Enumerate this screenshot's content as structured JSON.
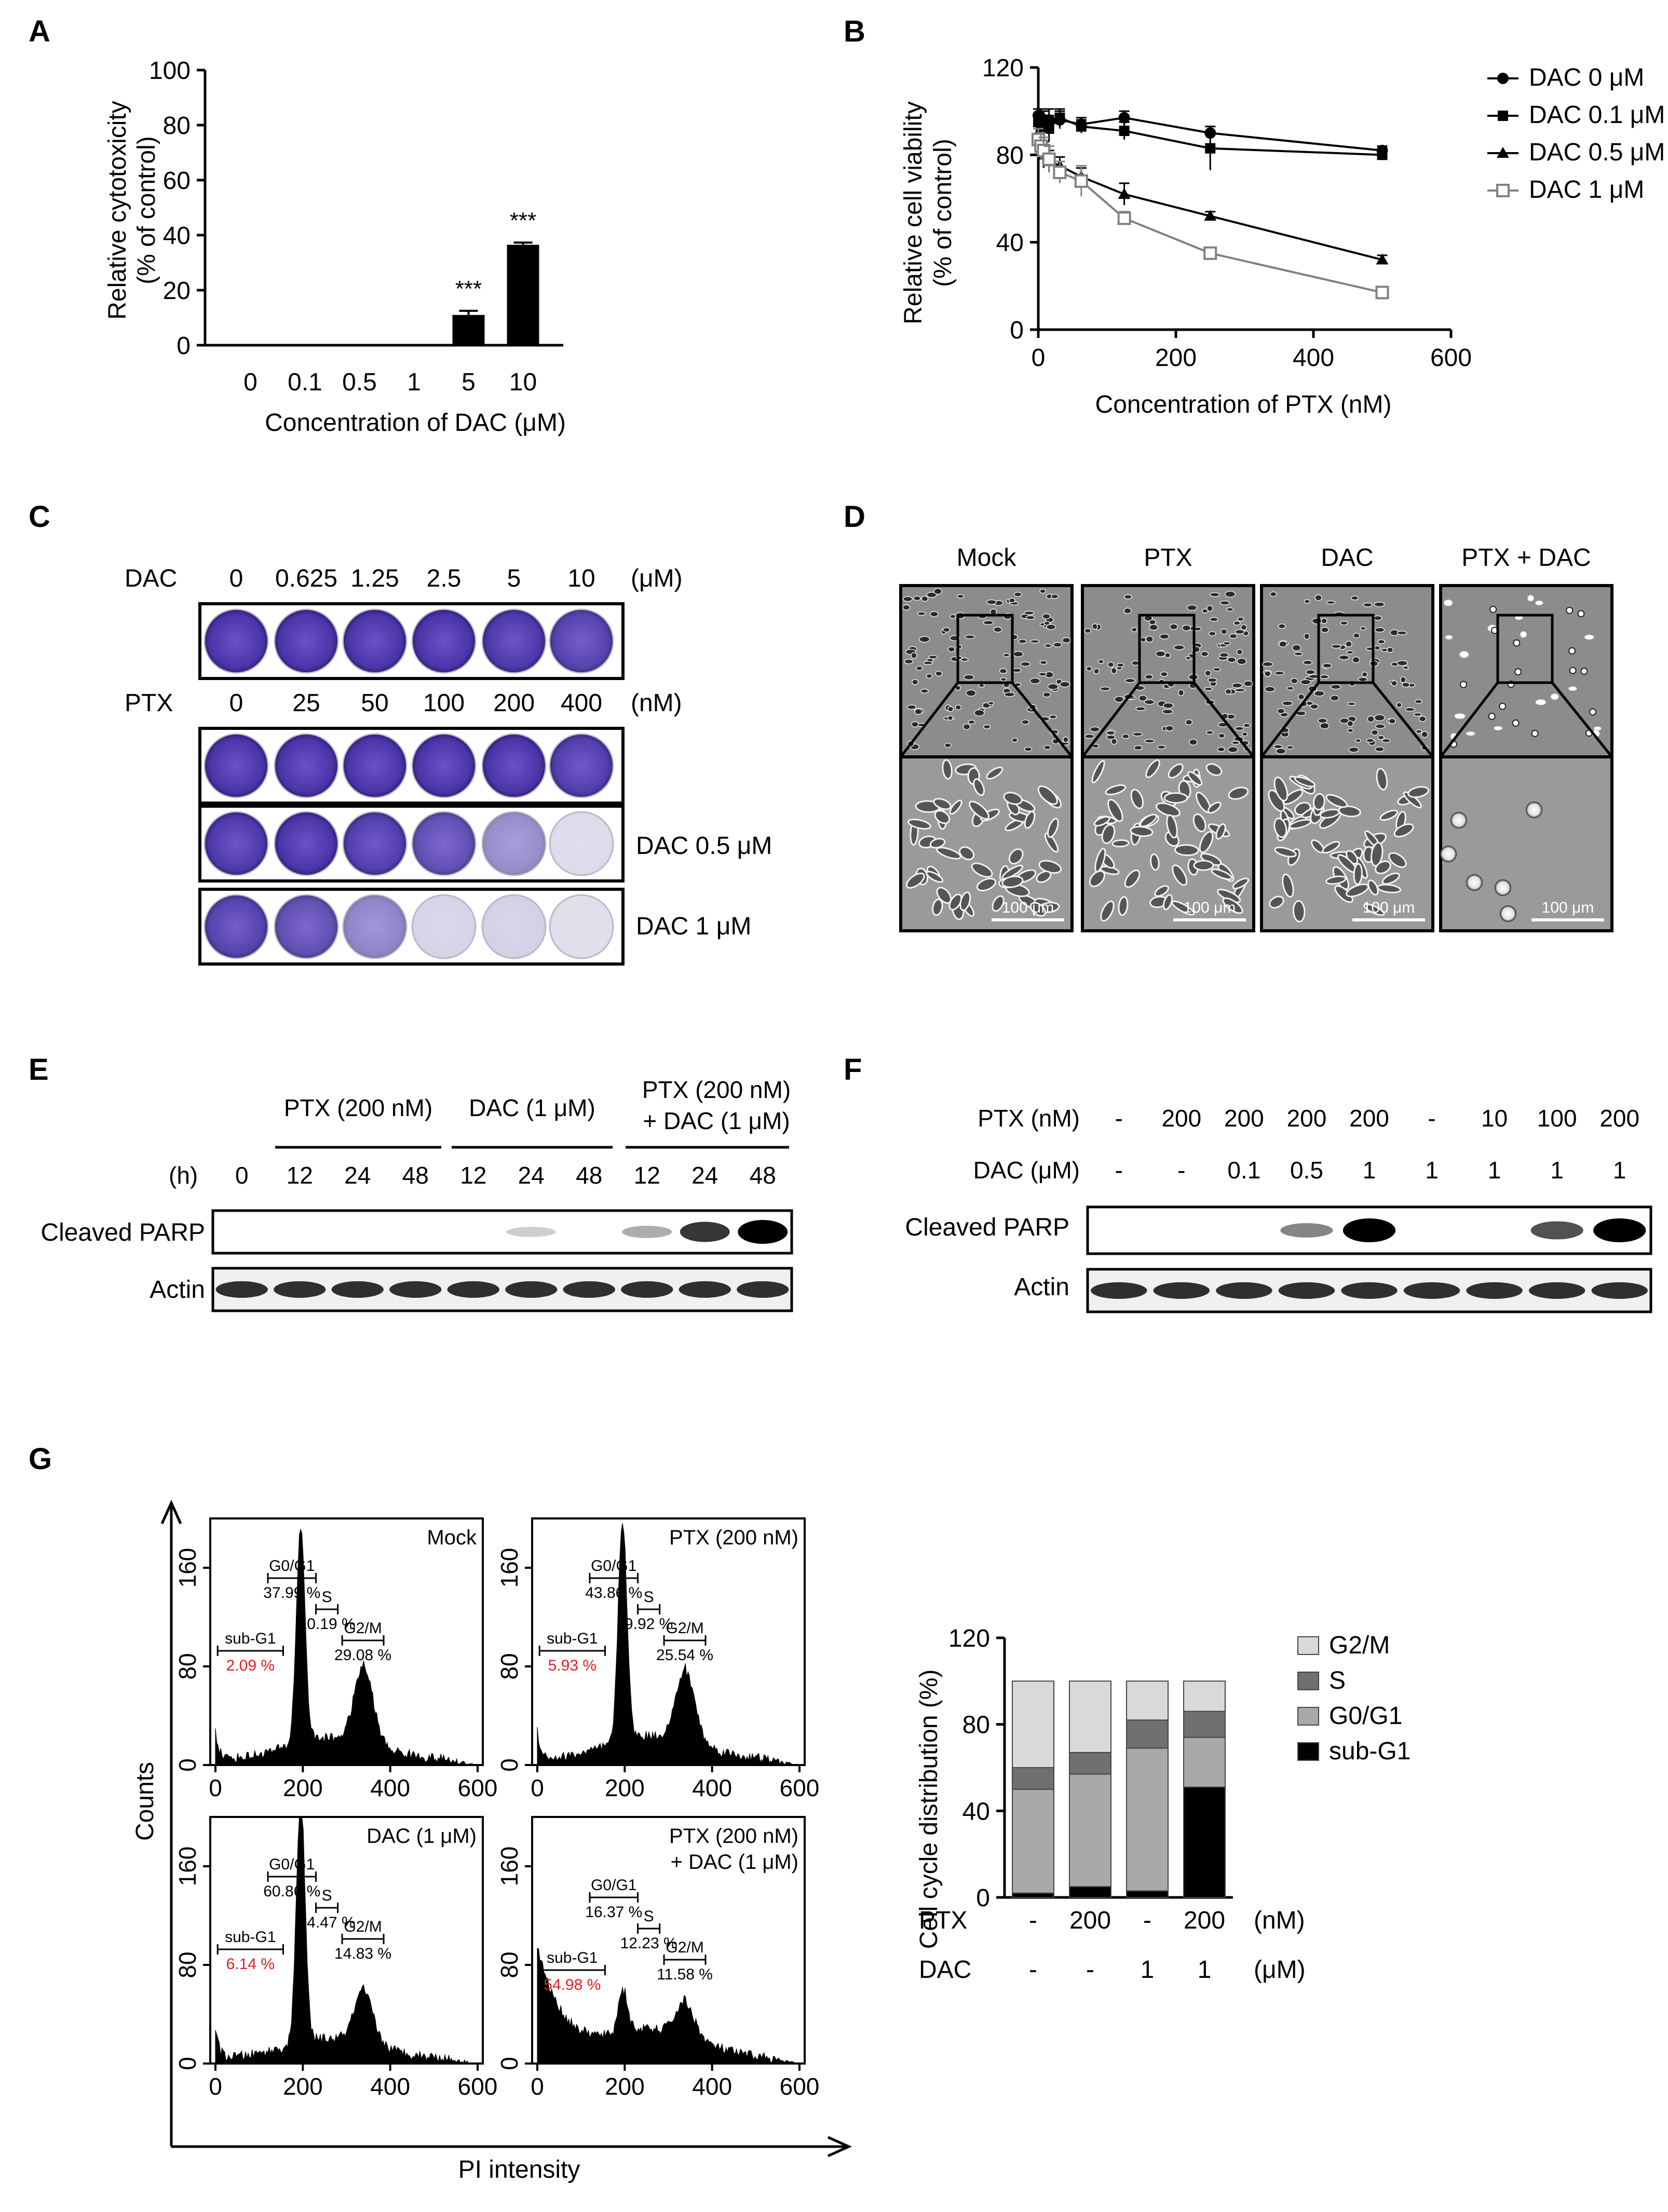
{
  "panels": {
    "A": "A",
    "B": "B",
    "C": "C",
    "D": "D",
    "E": "E",
    "F": "F",
    "G": "G"
  },
  "chart_data": [
    {
      "panel": "A",
      "type": "bar",
      "categories": [
        "0",
        "0.1",
        "0.5",
        "1",
        "5",
        "10"
      ],
      "values": [
        0,
        0,
        0,
        0,
        11,
        36.5
      ],
      "errors": [
        0,
        0,
        0,
        0,
        1.5,
        0.8
      ],
      "annotations": [
        "",
        "",
        "",
        "",
        "***",
        "***"
      ],
      "xlabel": "Concentration of DAC (μM)",
      "ylabel_line1": "Relative cytotoxicity",
      "ylabel_line2": "(% of control)",
      "ylim": [
        0,
        100
      ],
      "yticks": [
        "0",
        "20",
        "40",
        "60",
        "80",
        "100"
      ],
      "color": "#000000"
    },
    {
      "panel": "B",
      "type": "line",
      "xlabel": "Concentration of PTX (nM)",
      "ylabel_line1": "Relative cell viability",
      "ylabel_line2": "(% of control)",
      "xlim": [
        0,
        600
      ],
      "ylim": [
        0,
        120
      ],
      "xticks": [
        "0",
        "200",
        "400",
        "600"
      ],
      "yticks": [
        "0",
        "40",
        "80",
        "120"
      ],
      "x": [
        0,
        3.9,
        7.8,
        15.6,
        31.25,
        62.5,
        125,
        250,
        500
      ],
      "series": [
        {
          "name": "DAC 0 μM",
          "marker": "circle",
          "values": [
            98,
            97,
            96,
            96,
            96,
            94,
            97,
            90,
            82
          ],
          "errors": [
            3,
            4,
            4,
            5,
            4,
            3,
            3,
            3,
            2
          ]
        },
        {
          "name": "DAC 0.1 μM",
          "marker": "square",
          "values": [
            95,
            93,
            94,
            92,
            97,
            93,
            91,
            83,
            80
          ],
          "errors": [
            3,
            4,
            4,
            6,
            4,
            3,
            4,
            10,
            2
          ]
        },
        {
          "name": "DAC 0.5 μM",
          "marker": "triangle",
          "values": [
            90,
            86,
            80,
            77,
            75,
            70,
            62,
            52,
            32
          ],
          "errors": [
            4,
            5,
            6,
            5,
            4,
            4,
            5,
            2,
            2
          ]
        },
        {
          "name": "DAC 1 μM",
          "marker": "open-square",
          "values": [
            87,
            84,
            82,
            78,
            72,
            68,
            51,
            35,
            17
          ],
          "errors": [
            5,
            6,
            6,
            6,
            5,
            7,
            3,
            2,
            2
          ]
        }
      ]
    },
    {
      "panel": "G-histogram",
      "type": "area",
      "xlabel": "PI intensity",
      "ylabel": "Counts",
      "xticks": [
        "0",
        "200",
        "400",
        "600"
      ],
      "yticks": [
        "0",
        "80",
        "160"
      ],
      "xlim": [
        0,
        600
      ],
      "ylim": [
        0,
        200
      ],
      "plots": [
        {
          "title": "Mock",
          "subG1": "2.09 %",
          "G0G1": "37.99 %",
          "S": "10.19 %",
          "G2M": "29.08 %",
          "g1_peak": 175,
          "g2_peak": 60,
          "base": 20
        },
        {
          "title": "PTX (200 nM)",
          "subG1": "5.93 %",
          "G0G1": "43.86 %",
          "S": "9.92 %",
          "G2M": "25.54 %",
          "g1_peak": 180,
          "g2_peak": 55,
          "base": 22
        },
        {
          "title": "DAC (1 μM)",
          "title2": "",
          "subG1": "6.14 %",
          "G0G1": "60.86 %",
          "S": "14.47 %",
          "G2M": "14.83 %",
          "g1_peak": 200,
          "g2_peak": 40,
          "base": 18
        },
        {
          "title": "PTX (200 nM)",
          "title2": "+ DAC (1 μM)",
          "subG1": "54.98 %",
          "G0G1": "16.37 %",
          "S": "12.23 %",
          "G2M": "11.58 %",
          "g1_peak": 35,
          "g2_peak": 25,
          "base": 25
        }
      ],
      "gate_labels": {
        "subG1": "sub-G1",
        "G0G1": "G0/G1",
        "S": "S",
        "G2M": "G2/M"
      }
    },
    {
      "panel": "G-stacked",
      "type": "bar",
      "stacked": true,
      "ylabel": "Cell cycle distribution (%)",
      "ylim": [
        0,
        120
      ],
      "yticks": [
        "0",
        "40",
        "80",
        "120"
      ],
      "row_labels": [
        {
          "name": "PTX",
          "values": [
            "-",
            "200",
            "-",
            "200"
          ],
          "unit": "(nM)"
        },
        {
          "name": "DAC",
          "values": [
            "-",
            "-",
            "1",
            "1"
          ],
          "unit": "(μM)"
        }
      ],
      "series": [
        {
          "name": "sub-G1",
          "color": "#000000",
          "values": [
            2,
            5,
            3,
            51
          ]
        },
        {
          "name": "G0/G1",
          "color": "#a9a9a9",
          "values": [
            48,
            52,
            66,
            23
          ]
        },
        {
          "name": "S",
          "color": "#707070",
          "values": [
            10,
            10,
            13,
            12
          ]
        },
        {
          "name": "G2/M",
          "color": "#d9d9d9",
          "values": [
            40,
            33,
            18,
            14
          ]
        }
      ]
    }
  ],
  "panelC": {
    "row1_label": "DAC",
    "row1_values": [
      "0",
      "0.625",
      "1.25",
      "2.5",
      "5",
      "10"
    ],
    "row1_unit": "(μM)",
    "row2_label": "PTX",
    "row2_values": [
      "0",
      "25",
      "50",
      "100",
      "200",
      "400"
    ],
    "row2_unit": "(nM)",
    "side_label_3": "DAC 0.5 μM",
    "side_label_4": "DAC 1 μM",
    "well_intensity": [
      [
        1,
        1,
        1,
        1,
        0.98,
        0.92
      ],
      [
        1,
        1,
        1,
        1,
        1,
        0.95
      ],
      [
        0.98,
        1,
        0.95,
        0.85,
        0.5,
        0.06
      ],
      [
        0.92,
        0.85,
        0.55,
        0.1,
        0.12,
        0.04
      ]
    ]
  },
  "panelD": {
    "titles": [
      "Mock",
      "PTX",
      "DAC",
      "PTX + DAC"
    ],
    "scale_label": "100 μm"
  },
  "panelE": {
    "group1": "PTX (200 nM)",
    "group2": "DAC (1 μM)",
    "group3_line1": "PTX (200 nM)",
    "group3_line2": "+ DAC (1 μM)",
    "time_label": "(h)",
    "times": [
      "0",
      "12",
      "24",
      "48",
      "12",
      "24",
      "48",
      "12",
      "24",
      "48"
    ],
    "row1": "Cleaved PARP",
    "row2": "Actin",
    "parp_intensity": [
      0,
      0,
      0,
      0,
      0,
      0.05,
      0,
      0.2,
      0.75,
      1
    ]
  },
  "panelF": {
    "ptx_label": "PTX (nM)",
    "ptx_values": [
      "-",
      "200",
      "200",
      "200",
      "200",
      "-",
      "10",
      "100",
      "200"
    ],
    "dac_label": "DAC (μM)",
    "dac_values": [
      "-",
      "-",
      "0.1",
      "0.5",
      "1",
      "1",
      "1",
      "1",
      "1"
    ],
    "row1": "Cleaved PARP",
    "row2": "Actin",
    "parp_intensity": [
      0,
      0,
      0,
      0.35,
      1,
      0,
      0,
      0.6,
      1
    ]
  }
}
